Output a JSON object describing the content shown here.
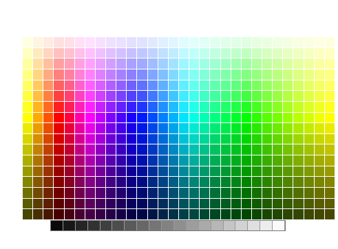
{
  "header": {
    "line1": "",
    "line2": "",
    "line3": ""
  },
  "columns": {
    "count": 30,
    "labels": []
  },
  "rows": {
    "count": 17,
    "labels": []
  },
  "grayscale": {
    "count": 19,
    "labels": []
  },
  "colors": {
    "background": "#ffffff",
    "grid_gap": "#ffffff",
    "gray_border": "#777777"
  }
}
